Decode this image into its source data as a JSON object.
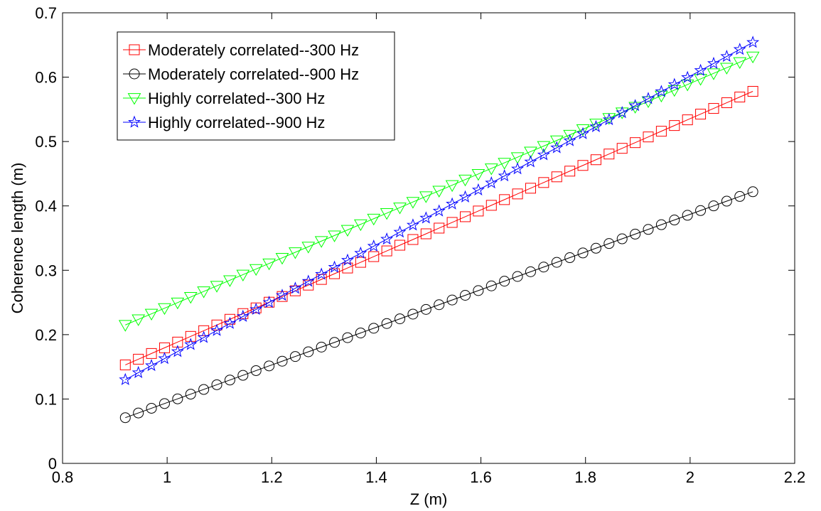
{
  "chart_data": {
    "type": "line",
    "xlabel": "Z (m)",
    "ylabel": "Coherence length (m)",
    "xlim": [
      0.8,
      2.2
    ],
    "ylim": [
      0,
      0.7
    ],
    "xticks": [
      "0.8",
      "1",
      "1.2",
      "1.4",
      "1.6",
      "1.8",
      "2",
      "2.2"
    ],
    "yticks": [
      "0",
      "0.1",
      "0.2",
      "0.3",
      "0.4",
      "0.5",
      "0.6",
      "0.7"
    ],
    "grid": false,
    "legend_position": "top-left",
    "x": {
      "start": 0.92,
      "end": 2.12,
      "step": 0.025
    },
    "series": [
      {
        "name": "Moderately correlated--300 Hz",
        "color": "#ff0000",
        "marker": "square",
        "y_start": 0.153,
        "y_end": 0.578
      },
      {
        "name": "Moderately correlated--900 Hz",
        "color": "#000000",
        "marker": "circle",
        "y_start": 0.071,
        "y_end": 0.422
      },
      {
        "name": "Highly correlated--300 Hz",
        "color": "#00ff00",
        "marker": "triangle-down",
        "y_start": 0.215,
        "y_end": 0.632
      },
      {
        "name": "Highly correlated--900 Hz",
        "color": "#0000ff",
        "marker": "star",
        "y_start": 0.13,
        "y_end": 0.654
      }
    ]
  }
}
